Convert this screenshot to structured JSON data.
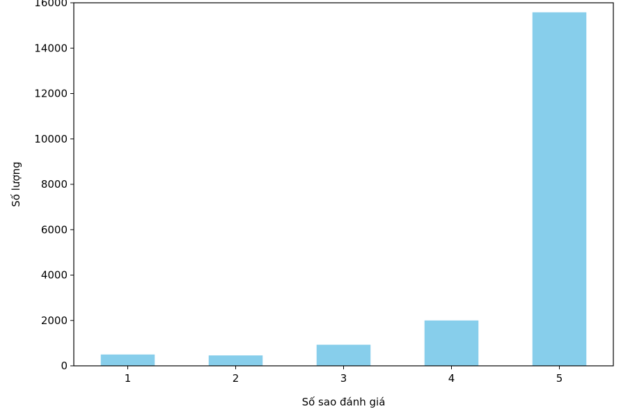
{
  "chart_data": {
    "type": "bar",
    "categories": [
      "1",
      "2",
      "3",
      "4",
      "5"
    ],
    "values": [
      500,
      460,
      930,
      2000,
      15580
    ],
    "title": "",
    "xlabel": "Số sao đánh giá",
    "ylabel": "Số lượng",
    "ylim": [
      0,
      16000
    ],
    "yticks": [
      "0",
      "2000",
      "4000",
      "6000",
      "8000",
      "10000",
      "12000",
      "14000",
      "16000"
    ],
    "grid": false,
    "legend": "none",
    "bar_color": "#87CEEB"
  }
}
